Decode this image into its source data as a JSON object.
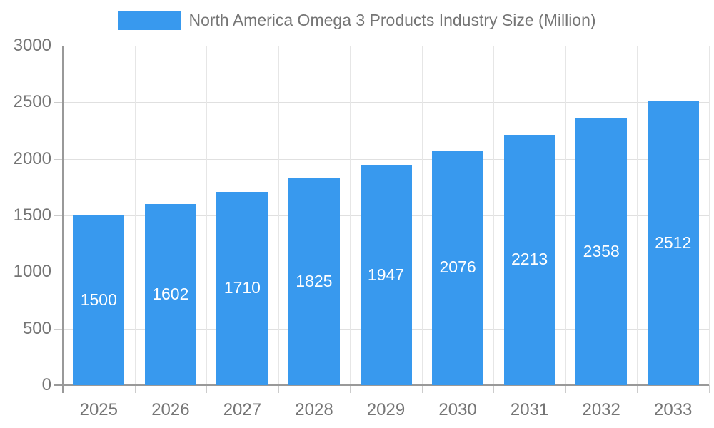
{
  "legend": {
    "label": "North America Omega 3 Products Industry Size (Million)",
    "swatch_color": "#3899EE"
  },
  "colors": {
    "bar": "#3899EE",
    "bar_label": "#ffffff",
    "axis_text": "#757575",
    "axis_line": "#999999",
    "hgridline": "#e0e0e0",
    "vgridline": "#e6e6e6",
    "tick": "#cccccc",
    "background": "#ffffff"
  },
  "chart_data": {
    "type": "bar",
    "title": "North America Omega 3 Products Industry Size (Million)",
    "categories": [
      "2025",
      "2026",
      "2027",
      "2028",
      "2029",
      "2030",
      "2031",
      "2032",
      "2033"
    ],
    "values": [
      1500,
      1602,
      1710,
      1825,
      1947,
      2076,
      2213,
      2358,
      2512
    ],
    "xlabel": "",
    "ylabel": "",
    "ylim": [
      0,
      3000
    ],
    "yticks": [
      0,
      500,
      1000,
      1500,
      2000,
      2500,
      3000
    ],
    "grid": true,
    "legend_position": "top",
    "bar_labels": "inside-centered"
  }
}
